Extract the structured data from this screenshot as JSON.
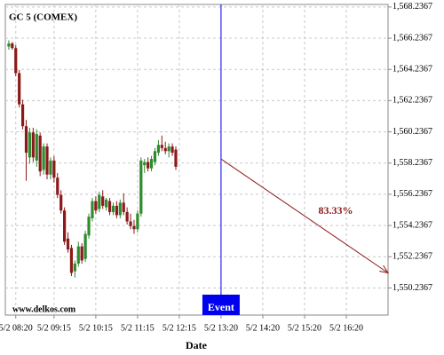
{
  "chart_data": {
    "type": "candlestick",
    "title": "GC 5 (COMEX)",
    "watermark": "www.delkos.com",
    "x_label": "Date",
    "x": [
      0,
      1,
      2,
      3,
      4,
      5,
      6,
      7,
      8,
      9,
      10,
      11,
      12,
      13,
      14,
      15,
      16,
      17,
      18,
      19,
      20,
      21,
      22,
      23,
      24,
      25,
      26,
      27,
      28,
      29,
      30,
      31,
      32,
      33,
      34,
      35,
      36,
      37,
      38,
      39,
      40,
      41,
      42,
      43,
      44,
      45,
      46,
      47,
      48
    ],
    "open": [
      1565.7,
      1565.9,
      1565.6,
      1564.0,
      1562.0,
      1560.6,
      1558.6,
      1560.2,
      1558.4,
      1560.0,
      1557.8,
      1559.3,
      1557.5,
      1558.4,
      1557.3,
      1556.2,
      1555.2,
      1553.4,
      1552.8,
      1551.3,
      1551.8,
      1552.9,
      1552.1,
      1553.6,
      1554.7,
      1555.8,
      1555.3,
      1556.1,
      1555.4,
      1555.8,
      1555.1,
      1555.5,
      1554.9,
      1555.7,
      1555.1,
      1554.5,
      1554.2,
      1554.0,
      1555.0,
      1558.1,
      1558.3,
      1557.9,
      1558.3,
      1558.9,
      1559.4,
      1559.2,
      1559.0,
      1559.3,
      1559.1
    ],
    "high": [
      1566.1,
      1566.0,
      1565.8,
      1564.2,
      1562.3,
      1561.0,
      1560.5,
      1560.5,
      1560.4,
      1560.2,
      1559.5,
      1559.5,
      1558.6,
      1558.7,
      1557.6,
      1556.5,
      1555.4,
      1553.8,
      1553.0,
      1552.0,
      1553.2,
      1553.1,
      1553.9,
      1555.0,
      1556.0,
      1556.1,
      1556.4,
      1556.5,
      1556.0,
      1556.0,
      1555.7,
      1555.8,
      1555.9,
      1556.3,
      1555.4,
      1555.0,
      1554.6,
      1555.2,
      1558.6,
      1558.5,
      1558.6,
      1558.7,
      1559.2,
      1559.7,
      1560.0,
      1559.6,
      1559.5,
      1559.5,
      1559.3
    ],
    "low": [
      1565.5,
      1565.5,
      1563.8,
      1561.8,
      1560.4,
      1557.1,
      1558.2,
      1558.3,
      1558.0,
      1557.4,
      1557.5,
      1557.2,
      1557.2,
      1557.0,
      1556.0,
      1555.0,
      1553.0,
      1552.5,
      1551.0,
      1550.9,
      1551.6,
      1551.8,
      1551.9,
      1553.4,
      1554.5,
      1555.0,
      1555.1,
      1555.3,
      1555.2,
      1554.9,
      1554.9,
      1554.7,
      1554.7,
      1554.9,
      1554.3,
      1554.0,
      1553.7,
      1553.8,
      1554.8,
      1557.6,
      1557.7,
      1557.7,
      1558.1,
      1558.7,
      1559.0,
      1558.8,
      1558.6,
      1558.7,
      1557.8
    ],
    "close": [
      1565.9,
      1565.6,
      1564.0,
      1562.0,
      1560.6,
      1558.9,
      1560.2,
      1558.6,
      1560.1,
      1557.7,
      1559.3,
      1557.5,
      1558.4,
      1557.3,
      1556.2,
      1555.2,
      1553.2,
      1552.7,
      1551.2,
      1551.8,
      1552.9,
      1552.0,
      1553.7,
      1554.8,
      1555.8,
      1555.2,
      1556.2,
      1555.5,
      1555.9,
      1555.1,
      1555.5,
      1554.9,
      1555.7,
      1555.1,
      1554.5,
      1554.2,
      1554.0,
      1555.0,
      1558.4,
      1558.3,
      1557.9,
      1558.5,
      1559.0,
      1559.4,
      1559.2,
      1559.0,
      1559.3,
      1558.9,
      1558.0
    ],
    "up_color": "#2e8b2e",
    "down_color": "#8b1a1a",
    "xlim": [
      -1,
      109
    ],
    "xticks": [
      {
        "value": 2,
        "label": "5/2 08:20"
      },
      {
        "value": 13,
        "label": "5/2 09:15"
      },
      {
        "value": 25,
        "label": "5/2 10:15"
      },
      {
        "value": 37,
        "label": "5/2 11:15"
      },
      {
        "value": 49,
        "label": "5/2 12:15"
      },
      {
        "value": 61,
        "label": "5/2 13:20"
      },
      {
        "value": 73,
        "label": "5/2 14:20"
      },
      {
        "value": 85,
        "label": "5/2 15:20"
      },
      {
        "value": 97,
        "label": "5/2 16:20"
      }
    ],
    "ylim": [
      1548.5,
      1568.4
    ],
    "yticks": [
      {
        "value": 1550.2367,
        "label": "1,550.2367"
      },
      {
        "value": 1552.2367,
        "label": "1,552.2367"
      },
      {
        "value": 1554.2367,
        "label": "1,554.2367"
      },
      {
        "value": 1556.2367,
        "label": "1,556.2367"
      },
      {
        "value": 1558.2367,
        "label": "1,558.2367"
      },
      {
        "value": 1560.2367,
        "label": "1,560.2367"
      },
      {
        "value": 1562.2367,
        "label": "1,562.2367"
      },
      {
        "value": 1564.2367,
        "label": "1,564.2367"
      },
      {
        "value": 1566.2367,
        "label": "1,566.2367"
      },
      {
        "value": 1568.2367,
        "label": "1,568.2367"
      }
    ],
    "grid": true,
    "event": {
      "label": "Event",
      "x": 61,
      "color": "#0000ee"
    },
    "forecast": {
      "label": "83.33%",
      "x": [
        61,
        109
      ],
      "y": [
        1558.5,
        1551.2
      ],
      "color": "#8b1a1a"
    }
  }
}
